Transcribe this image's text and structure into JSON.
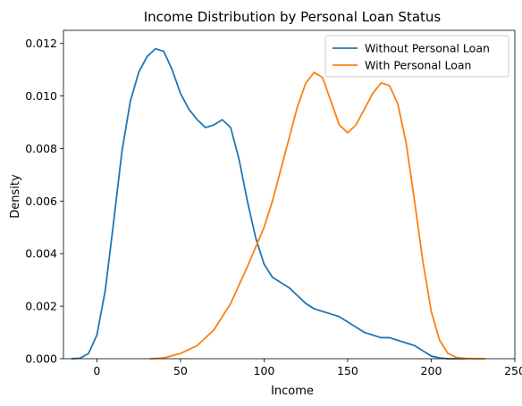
{
  "chart_data": {
    "type": "line",
    "title": "Income Distribution by Personal Loan Status",
    "xlabel": "Income",
    "ylabel": "Density",
    "xlim": [
      -20,
      250
    ],
    "ylim": [
      0,
      0.0125
    ],
    "xticks": [
      0,
      50,
      100,
      150,
      200,
      250
    ],
    "yticks": [
      0.0,
      0.002,
      0.004,
      0.006,
      0.008,
      0.01,
      0.012
    ],
    "ytick_labels": [
      "0.000",
      "0.002",
      "0.004",
      "0.006",
      "0.008",
      "0.010",
      "0.012"
    ],
    "grid": false,
    "legend_position": "top-right",
    "series": [
      {
        "name": "Without Personal Loan",
        "color": "#1f77b4",
        "x": [
          -15,
          -10,
          -5,
          0,
          5,
          10,
          15,
          20,
          25,
          30,
          35,
          40,
          45,
          50,
          55,
          60,
          65,
          70,
          75,
          80,
          85,
          90,
          95,
          100,
          105,
          110,
          115,
          120,
          125,
          130,
          135,
          140,
          145,
          150,
          155,
          160,
          165,
          170,
          175,
          180,
          185,
          190,
          195,
          200,
          205,
          210,
          215,
          220
        ],
        "y": [
          0.0,
          2e-05,
          0.0002,
          0.0009,
          0.0026,
          0.0052,
          0.0079,
          0.0098,
          0.0109,
          0.0115,
          0.0118,
          0.0117,
          0.011,
          0.0101,
          0.0095,
          0.0091,
          0.0088,
          0.0089,
          0.0091,
          0.0088,
          0.0076,
          0.006,
          0.0046,
          0.0036,
          0.0031,
          0.0029,
          0.0027,
          0.0024,
          0.0021,
          0.0019,
          0.0018,
          0.0017,
          0.0016,
          0.0014,
          0.0012,
          0.001,
          0.0009,
          0.0008,
          0.0008,
          0.0007,
          0.0006,
          0.0005,
          0.0003,
          0.0001,
          3e-05,
          0.0,
          0.0,
          0.0
        ]
      },
      {
        "name": "With Personal Loan",
        "color": "#ff7f0e",
        "x": [
          32,
          40,
          50,
          60,
          70,
          80,
          90,
          100,
          105,
          110,
          115,
          120,
          125,
          130,
          135,
          140,
          145,
          150,
          155,
          160,
          165,
          170,
          175,
          180,
          185,
          190,
          195,
          200,
          205,
          210,
          215,
          220,
          225,
          232
        ],
        "y": [
          0.0,
          3e-05,
          0.0002,
          0.0005,
          0.0011,
          0.0021,
          0.0035,
          0.005,
          0.006,
          0.0072,
          0.0084,
          0.0096,
          0.0105,
          0.0109,
          0.0107,
          0.0098,
          0.0089,
          0.0086,
          0.0089,
          0.0095,
          0.0101,
          0.0105,
          0.0104,
          0.0097,
          0.0082,
          0.006,
          0.0037,
          0.0018,
          0.0007,
          0.0002,
          5e-05,
          1e-05,
          0.0,
          0.0
        ]
      }
    ]
  }
}
